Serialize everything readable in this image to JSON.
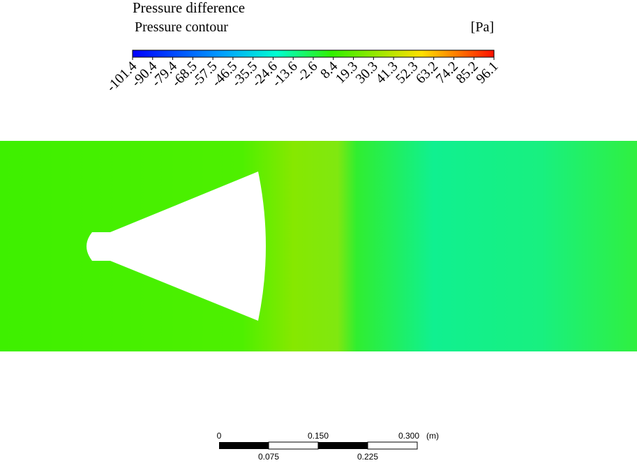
{
  "legend": {
    "title": "Pressure difference",
    "subtitle": "Pressure contour",
    "unit": "[Pa]",
    "ticks": [
      "-101.4",
      "-90.4",
      "-79.4",
      "-68.5",
      "-57.5",
      "-46.5",
      "-35.5",
      "-24.6",
      "-13.6",
      "-2.6",
      "8.4",
      "19.3",
      "30.3",
      "41.3",
      "52.3",
      "63.2",
      "74.2",
      "85.2",
      "96.1"
    ]
  },
  "scale_bar": {
    "top_labels": [
      "0",
      "0.150",
      "0.300"
    ],
    "unit": "(m)",
    "bottom_labels": [
      "0.075",
      "0.225"
    ]
  }
}
